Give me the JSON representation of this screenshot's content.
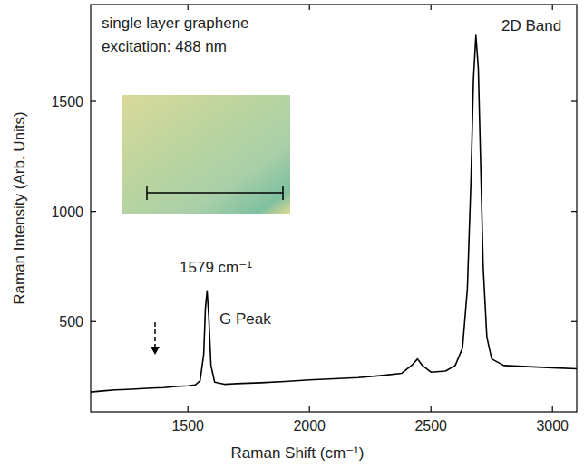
{
  "chart_data": {
    "type": "line",
    "title": "single layer graphene",
    "subtitle": "excitation: 488 nm",
    "x_label": "Raman Shift (cm⁻¹)",
    "y_label": "Raman Intensity (Arb. Units)",
    "annotations": [
      "1579 cm⁻¹",
      "G Peak",
      "2D Band"
    ],
    "x": [
      1100,
      1150,
      1200,
      1250,
      1300,
      1350,
      1400,
      1450,
      1500,
      1530,
      1550,
      1565,
      1572,
      1579,
      1586,
      1595,
      1610,
      1650,
      1700,
      1800,
      1900,
      2000,
      2100,
      2200,
      2300,
      2380,
      2420,
      2445,
      2465,
      2500,
      2560,
      2600,
      2630,
      2650,
      2665,
      2675,
      2685,
      2695,
      2705,
      2715,
      2730,
      2750,
      2800,
      2900,
      3000,
      3100
    ],
    "series": [
      {
        "name": "single layer graphene",
        "color": "#000000",
        "values": [
          180,
          185,
          190,
          192,
          195,
          198,
          200,
          205,
          208,
          212,
          230,
          350,
          560,
          640,
          520,
          300,
          225,
          215,
          218,
          222,
          228,
          235,
          240,
          245,
          255,
          265,
          300,
          330,
          300,
          270,
          275,
          300,
          380,
          650,
          1150,
          1600,
          1800,
          1650,
          1200,
          750,
          430,
          330,
          300,
          295,
          290,
          285
        ]
      }
    ],
    "xlim": [
      1100,
      3100
    ],
    "ylim": [
      90,
      1940
    ],
    "xticks": [
      1500,
      2000,
      2500,
      3000
    ],
    "yticks": [
      500,
      1000,
      1500
    ],
    "grid": false
  }
}
